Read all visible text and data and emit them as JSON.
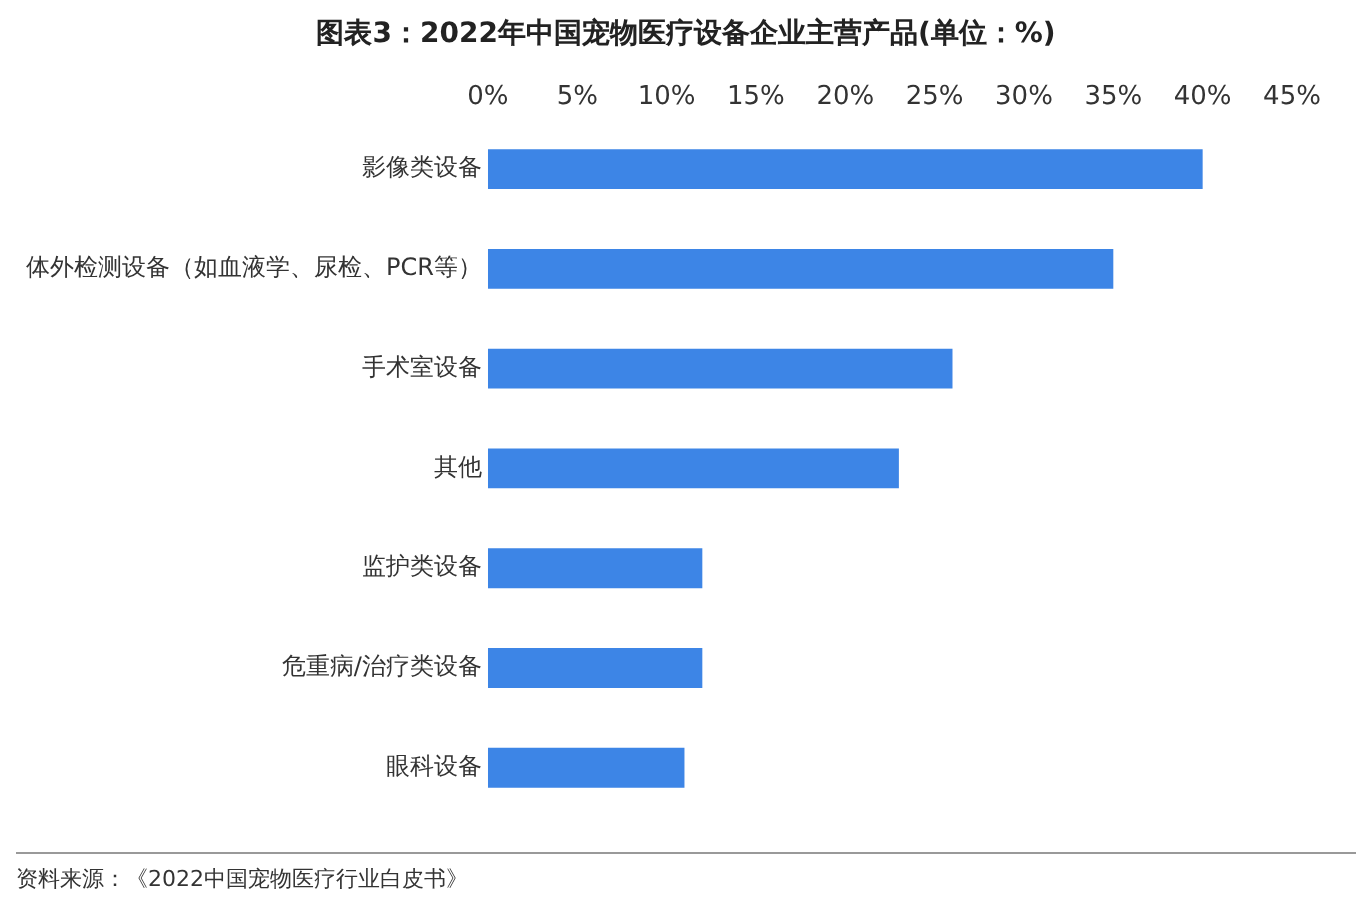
{
  "chart_data": {
    "type": "bar",
    "orientation": "horizontal",
    "title": "图表3：2022年中国宠物医疗设备企业主营产品(单位：%)",
    "categories": [
      "影像类设备",
      "体外检测设备（如血液学、尿检、PCR等）",
      "手术室设备",
      "其他",
      "监护类设备",
      "危重病/治疗类设备",
      "眼科设备"
    ],
    "values": [
      40,
      35,
      26,
      23,
      12,
      12,
      11
    ],
    "color": "#3d85e6",
    "xlim": [
      0,
      45
    ],
    "xticks": [
      {
        "value": 0,
        "label": "0%"
      },
      {
        "value": 5,
        "label": "5%"
      },
      {
        "value": 10,
        "label": "10%"
      },
      {
        "value": 15,
        "label": "15%"
      },
      {
        "value": 20,
        "label": "20%"
      },
      {
        "value": 25,
        "label": "25%"
      },
      {
        "value": 30,
        "label": "30%"
      },
      {
        "value": 35,
        "label": "35%"
      },
      {
        "value": 40,
        "label": "40%"
      },
      {
        "value": 45,
        "label": "45%"
      }
    ],
    "grid": false,
    "legend": false,
    "annotations": [
      "资料来源：《2022中国宠物医疗行业白皮书》"
    ]
  }
}
